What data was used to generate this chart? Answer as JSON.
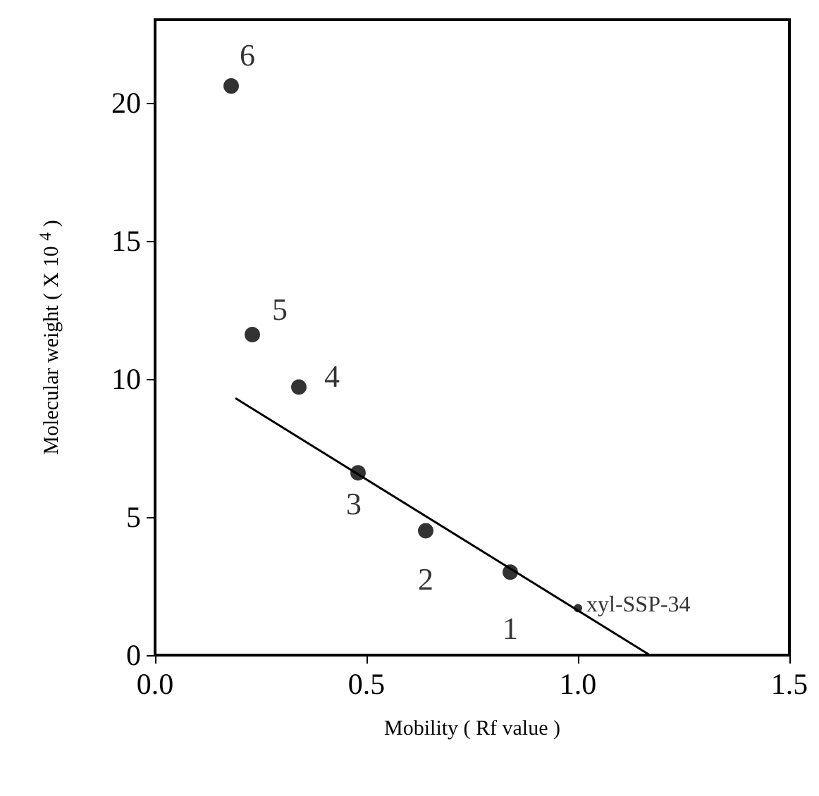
{
  "chart_data": {
    "type": "scatter",
    "xlabel": "Mobility ( Rf value )",
    "ylabel": "Molecular weight ( X 10 $^{4}$ )",
    "series": [
      {
        "color": "#000000",
        "x": [
          0.18,
          0.23,
          0.34,
          0.48,
          0.64,
          0.84
        ],
        "values": [
          20.6,
          11.6,
          9.7,
          6.6,
          4.5,
          3.0
        ]
      },
      {
        "color": "#000000",
        "x": [
          1.0
        ],
        "values": [
          1.7
        ]
      },
      {
        "type": "line",
        "color": "#000000",
        "marker": "none",
        "x": [
          0.19,
          1.17
        ],
        "values": [
          9.3,
          0
        ]
      }
    ],
    "annotations": [
      {
        "text": "6",
        "x": 0.18,
        "y": 20.6
      },
      {
        "text": "5",
        "x": 0.23,
        "y": 11.6
      },
      {
        "text": "4",
        "x": 0.34,
        "y": 9.7
      },
      {
        "text": "3",
        "x": 0.48,
        "y": 6.6
      },
      {
        "text": "2",
        "x": 0.64,
        "y": 4.5
      },
      {
        "text": "1",
        "x": 0.84,
        "y": 3.0
      },
      {
        "text": "xyl-SSP-34",
        "x": 1.0,
        "y": 1.7
      }
    ],
    "xlim": [
      0,
      1.5
    ],
    "xticks": [
      {
        "value": 0,
        "label": "0.0"
      },
      {
        "value": 0.5,
        "label": "0.5"
      },
      {
        "value": 1,
        "label": "1.0"
      },
      {
        "value": 1.5,
        "label": "1.5"
      }
    ],
    "ylim": [
      0,
      23
    ],
    "yticks": [
      0,
      5,
      10,
      15,
      20
    ],
    "grid": false,
    "marker": "circle",
    "line_style": "solid"
  }
}
